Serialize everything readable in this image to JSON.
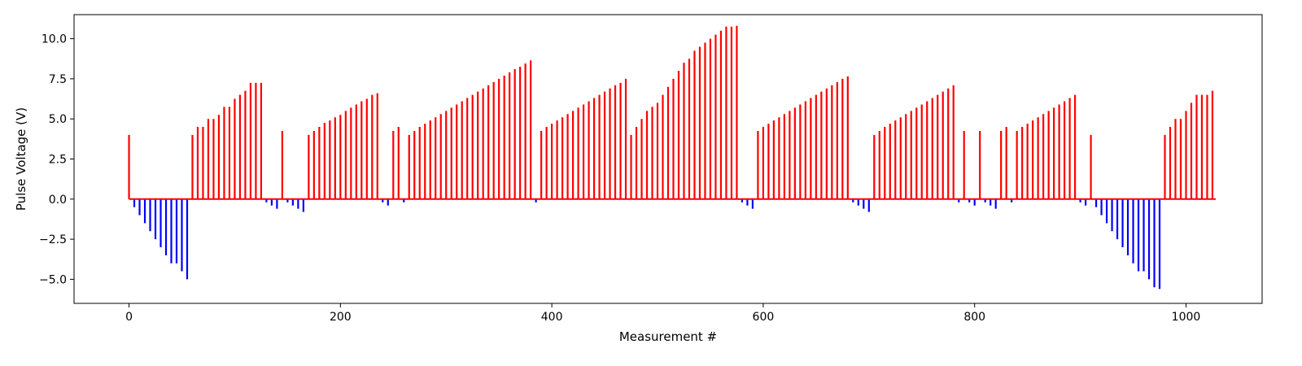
{
  "chart_data": {
    "type": "bar",
    "title": "",
    "xlabel": "Measurement #",
    "ylabel": "Pulse Voltage (V)",
    "xlim": [
      -52,
      1072
    ],
    "ylim": [
      -6.5,
      11.5
    ],
    "xticks": [
      0,
      200,
      400,
      600,
      800,
      1000
    ],
    "xtick_labels": [
      "0",
      "200",
      "400",
      "600",
      "800",
      "1000"
    ],
    "yticks": [
      -5,
      -2.5,
      0,
      2.5,
      5,
      7.5,
      10
    ],
    "ytick_labels": [
      "−5.0",
      "−2.5",
      "0.0",
      "2.5",
      "5.0",
      "7.5",
      "10.0"
    ],
    "grid": false,
    "colors": {
      "positive": "#ff0000",
      "negative": "#0000ff"
    },
    "series": [
      {
        "color": "#ff0000",
        "points": [
          [
            0,
            4.0
          ],
          [
            60,
            4.0
          ],
          [
            65,
            4.5
          ],
          [
            70,
            4.5
          ],
          [
            75,
            5.0
          ],
          [
            80,
            5.0
          ],
          [
            85,
            5.25
          ],
          [
            90,
            5.75
          ],
          [
            95,
            5.75
          ],
          [
            100,
            6.25
          ],
          [
            105,
            6.5
          ],
          [
            110,
            6.75
          ],
          [
            115,
            7.25
          ],
          [
            120,
            7.25
          ],
          [
            125,
            7.25
          ],
          [
            145,
            4.25
          ],
          [
            170,
            4.0
          ],
          [
            175,
            4.25
          ],
          [
            180,
            4.5
          ],
          [
            185,
            4.75
          ],
          [
            190,
            4.9
          ],
          [
            195,
            5.1
          ],
          [
            200,
            5.25
          ],
          [
            205,
            5.5
          ],
          [
            210,
            5.7
          ],
          [
            215,
            5.9
          ],
          [
            220,
            6.1
          ],
          [
            225,
            6.25
          ],
          [
            230,
            6.5
          ],
          [
            235,
            6.6
          ],
          [
            250,
            4.25
          ],
          [
            255,
            4.5
          ],
          [
            265,
            4.0
          ],
          [
            270,
            4.25
          ],
          [
            275,
            4.5
          ],
          [
            280,
            4.7
          ],
          [
            285,
            4.9
          ],
          [
            290,
            5.1
          ],
          [
            295,
            5.3
          ],
          [
            300,
            5.5
          ],
          [
            305,
            5.7
          ],
          [
            310,
            5.9
          ],
          [
            315,
            6.1
          ],
          [
            320,
            6.3
          ],
          [
            325,
            6.5
          ],
          [
            330,
            6.7
          ],
          [
            335,
            6.9
          ],
          [
            340,
            7.1
          ],
          [
            345,
            7.3
          ],
          [
            350,
            7.5
          ],
          [
            355,
            7.7
          ],
          [
            360,
            7.9
          ],
          [
            365,
            8.1
          ],
          [
            370,
            8.25
          ],
          [
            375,
            8.45
          ],
          [
            380,
            8.65
          ],
          [
            390,
            4.25
          ],
          [
            395,
            4.5
          ],
          [
            400,
            4.7
          ],
          [
            405,
            4.9
          ],
          [
            410,
            5.1
          ],
          [
            415,
            5.3
          ],
          [
            420,
            5.5
          ],
          [
            425,
            5.7
          ],
          [
            430,
            5.9
          ],
          [
            435,
            6.1
          ],
          [
            440,
            6.3
          ],
          [
            445,
            6.5
          ],
          [
            450,
            6.7
          ],
          [
            455,
            6.9
          ],
          [
            460,
            7.1
          ],
          [
            465,
            7.25
          ],
          [
            470,
            7.5
          ],
          [
            475,
            4.0
          ],
          [
            480,
            4.5
          ],
          [
            485,
            5.0
          ],
          [
            490,
            5.5
          ],
          [
            495,
            5.75
          ],
          [
            500,
            6.0
          ],
          [
            505,
            6.5
          ],
          [
            510,
            7.0
          ],
          [
            515,
            7.5
          ],
          [
            520,
            8.0
          ],
          [
            525,
            8.5
          ],
          [
            530,
            8.75
          ],
          [
            535,
            9.25
          ],
          [
            540,
            9.5
          ],
          [
            545,
            9.75
          ],
          [
            550,
            10.0
          ],
          [
            555,
            10.25
          ],
          [
            560,
            10.5
          ],
          [
            565,
            10.75
          ],
          [
            570,
            10.75
          ],
          [
            575,
            10.8
          ],
          [
            595,
            4.25
          ],
          [
            600,
            4.5
          ],
          [
            605,
            4.7
          ],
          [
            610,
            4.9
          ],
          [
            615,
            5.1
          ],
          [
            620,
            5.3
          ],
          [
            625,
            5.5
          ],
          [
            630,
            5.7
          ],
          [
            635,
            5.9
          ],
          [
            640,
            6.1
          ],
          [
            645,
            6.3
          ],
          [
            650,
            6.5
          ],
          [
            655,
            6.7
          ],
          [
            660,
            6.9
          ],
          [
            665,
            7.1
          ],
          [
            670,
            7.3
          ],
          [
            675,
            7.5
          ],
          [
            680,
            7.65
          ],
          [
            705,
            4.0
          ],
          [
            710,
            4.25
          ],
          [
            715,
            4.5
          ],
          [
            720,
            4.7
          ],
          [
            725,
            4.9
          ],
          [
            730,
            5.1
          ],
          [
            735,
            5.3
          ],
          [
            740,
            5.5
          ],
          [
            745,
            5.7
          ],
          [
            750,
            5.9
          ],
          [
            755,
            6.1
          ],
          [
            760,
            6.3
          ],
          [
            765,
            6.5
          ],
          [
            770,
            6.7
          ],
          [
            775,
            6.9
          ],
          [
            780,
            7.1
          ],
          [
            790,
            4.25
          ],
          [
            805,
            4.25
          ],
          [
            825,
            4.25
          ],
          [
            830,
            4.5
          ],
          [
            840,
            4.25
          ],
          [
            845,
            4.5
          ],
          [
            850,
            4.7
          ],
          [
            855,
            4.9
          ],
          [
            860,
            5.1
          ],
          [
            865,
            5.3
          ],
          [
            870,
            5.5
          ],
          [
            875,
            5.7
          ],
          [
            880,
            5.9
          ],
          [
            885,
            6.1
          ],
          [
            890,
            6.3
          ],
          [
            895,
            6.5
          ],
          [
            910,
            4.0
          ],
          [
            980,
            4.0
          ],
          [
            985,
            4.5
          ],
          [
            990,
            5.0
          ],
          [
            995,
            5.0
          ],
          [
            1000,
            5.5
          ],
          [
            1005,
            6.0
          ],
          [
            1010,
            6.5
          ],
          [
            1015,
            6.5
          ],
          [
            1020,
            6.5
          ],
          [
            1025,
            6.75
          ]
        ]
      },
      {
        "color": "#0000ff",
        "points": [
          [
            5,
            -0.5
          ],
          [
            10,
            -1.0
          ],
          [
            15,
            -1.5
          ],
          [
            20,
            -2.0
          ],
          [
            25,
            -2.5
          ],
          [
            30,
            -3.0
          ],
          [
            35,
            -3.5
          ],
          [
            40,
            -4.0
          ],
          [
            45,
            -4.0
          ],
          [
            50,
            -4.5
          ],
          [
            55,
            -5.0
          ],
          [
            130,
            -0.2
          ],
          [
            135,
            -0.4
          ],
          [
            140,
            -0.6
          ],
          [
            150,
            -0.2
          ],
          [
            155,
            -0.4
          ],
          [
            160,
            -0.6
          ],
          [
            165,
            -0.8
          ],
          [
            240,
            -0.2
          ],
          [
            245,
            -0.4
          ],
          [
            260,
            -0.2
          ],
          [
            385,
            -0.2
          ],
          [
            580,
            -0.2
          ],
          [
            585,
            -0.4
          ],
          [
            590,
            -0.6
          ],
          [
            685,
            -0.2
          ],
          [
            690,
            -0.4
          ],
          [
            695,
            -0.6
          ],
          [
            700,
            -0.8
          ],
          [
            785,
            -0.2
          ],
          [
            795,
            -0.2
          ],
          [
            800,
            -0.4
          ],
          [
            810,
            -0.2
          ],
          [
            815,
            -0.4
          ],
          [
            820,
            -0.6
          ],
          [
            835,
            -0.2
          ],
          [
            900,
            -0.2
          ],
          [
            905,
            -0.4
          ],
          [
            915,
            -0.5
          ],
          [
            920,
            -1.0
          ],
          [
            925,
            -1.5
          ],
          [
            930,
            -2.0
          ],
          [
            935,
            -2.5
          ],
          [
            940,
            -3.0
          ],
          [
            945,
            -3.5
          ],
          [
            950,
            -4.0
          ],
          [
            955,
            -4.5
          ],
          [
            960,
            -4.5
          ],
          [
            965,
            -5.0
          ],
          [
            970,
            -5.5
          ],
          [
            975,
            -5.6
          ]
        ]
      }
    ]
  }
}
